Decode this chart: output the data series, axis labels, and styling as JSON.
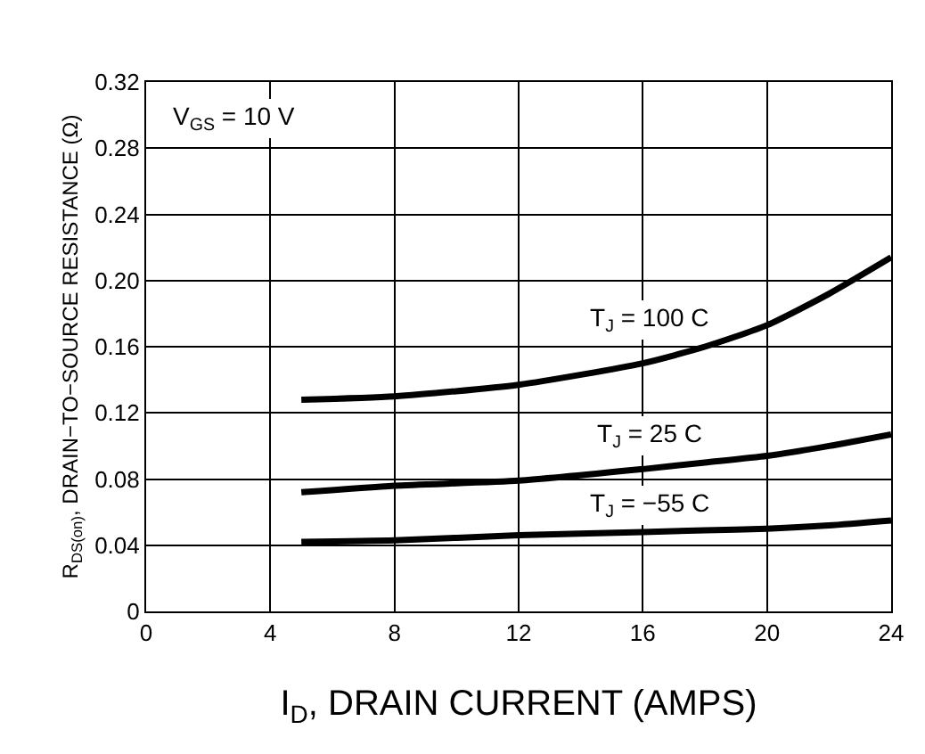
{
  "chart_data": {
    "type": "line",
    "xlabel": "I$_{D}$, DRAIN CURRENT (AMPS)",
    "ylabel": "R$_{DS(on)}$, DRAIN−TO−SOURCE RESISTANCE (Ω)",
    "x": [
      5,
      8,
      12,
      16,
      18,
      20,
      22,
      24
    ],
    "series": [
      {
        "name": "T$_{J}$ = 100 C",
        "color": "#000000",
        "values": [
          0.128,
          0.13,
          0.137,
          0.15,
          0.16,
          0.173,
          0.192,
          0.214
        ]
      },
      {
        "name": "T$_{J}$ = 25 C",
        "color": "#000000",
        "values": [
          0.072,
          0.076,
          0.079,
          0.086,
          0.09,
          0.094,
          0.1,
          0.107
        ]
      },
      {
        "name": "T$_{J}$ = −55 C",
        "color": "#000000",
        "values": [
          0.042,
          0.043,
          0.046,
          0.048,
          0.049,
          0.05,
          0.052,
          0.055
        ]
      }
    ],
    "annotations": [
      "V$_{GS}$ = 10 V"
    ],
    "xlim": [
      0,
      24
    ],
    "xticks": [
      0,
      4,
      8,
      12,
      16,
      20,
      24
    ],
    "ylim": [
      0,
      0.32
    ],
    "yticks": [
      0,
      0.04,
      0.08,
      0.12,
      0.16,
      {
        "value": 0.2,
        "label": "0.20"
      },
      0.24,
      0.28,
      0.32
    ],
    "grid": true,
    "marker": "none",
    "line_style": "solid"
  }
}
